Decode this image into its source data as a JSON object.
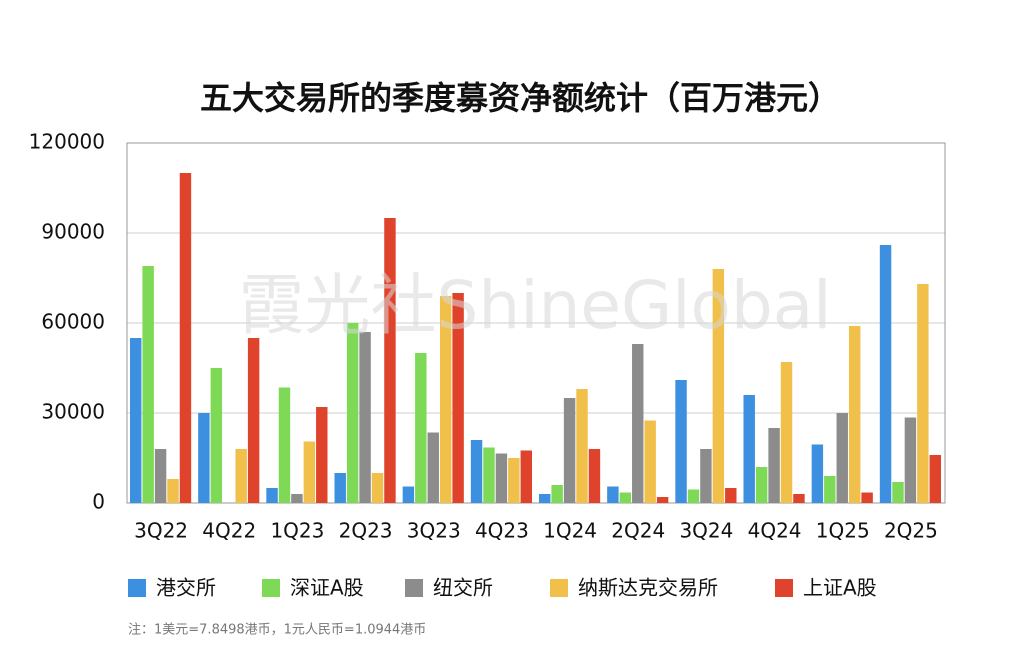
{
  "chart_data": {
    "type": "bar",
    "title": "五大交易所的季度募资净额统计（百万港元）",
    "watermark": "霞光社ShineGlobal",
    "note": "注：1美元=7.8498港币，1元人民币=1.0944港币",
    "categories": [
      "3Q22",
      "4Q22",
      "1Q23",
      "2Q23",
      "3Q23",
      "4Q23",
      "1Q24",
      "2Q24",
      "3Q24",
      "4Q24",
      "1Q25",
      "2Q25"
    ],
    "series": [
      {
        "name": "港交所",
        "color": "#3d8fe0",
        "values": [
          55000,
          30000,
          5000,
          10000,
          5500,
          21000,
          3000,
          5500,
          41000,
          36000,
          19500,
          86000
        ]
      },
      {
        "name": "深证A股",
        "color": "#7ed957",
        "values": [
          79000,
          45000,
          38500,
          60000,
          50000,
          18500,
          6000,
          3500,
          4500,
          12000,
          9000,
          7000
        ]
      },
      {
        "name": "纽交所",
        "color": "#8c8c8c",
        "values": [
          18000,
          0,
          3000,
          57000,
          23500,
          16500,
          35000,
          53000,
          18000,
          25000,
          30000,
          28500
        ]
      },
      {
        "name": "纳斯达克交易所",
        "color": "#f0c04a",
        "values": [
          8000,
          18000,
          20500,
          10000,
          69000,
          15000,
          38000,
          27500,
          78000,
          47000,
          59000,
          73000
        ]
      },
      {
        "name": "上证A股",
        "color": "#e0432b",
        "values": [
          110000,
          55000,
          32000,
          95000,
          70000,
          17500,
          18000,
          2000,
          5000,
          3000,
          3500,
          16000
        ]
      }
    ],
    "ylim": [
      0,
      120000
    ],
    "yticks": [
      0,
      30000,
      60000,
      90000,
      120000
    ],
    "grid": true,
    "legend": "bottom"
  }
}
